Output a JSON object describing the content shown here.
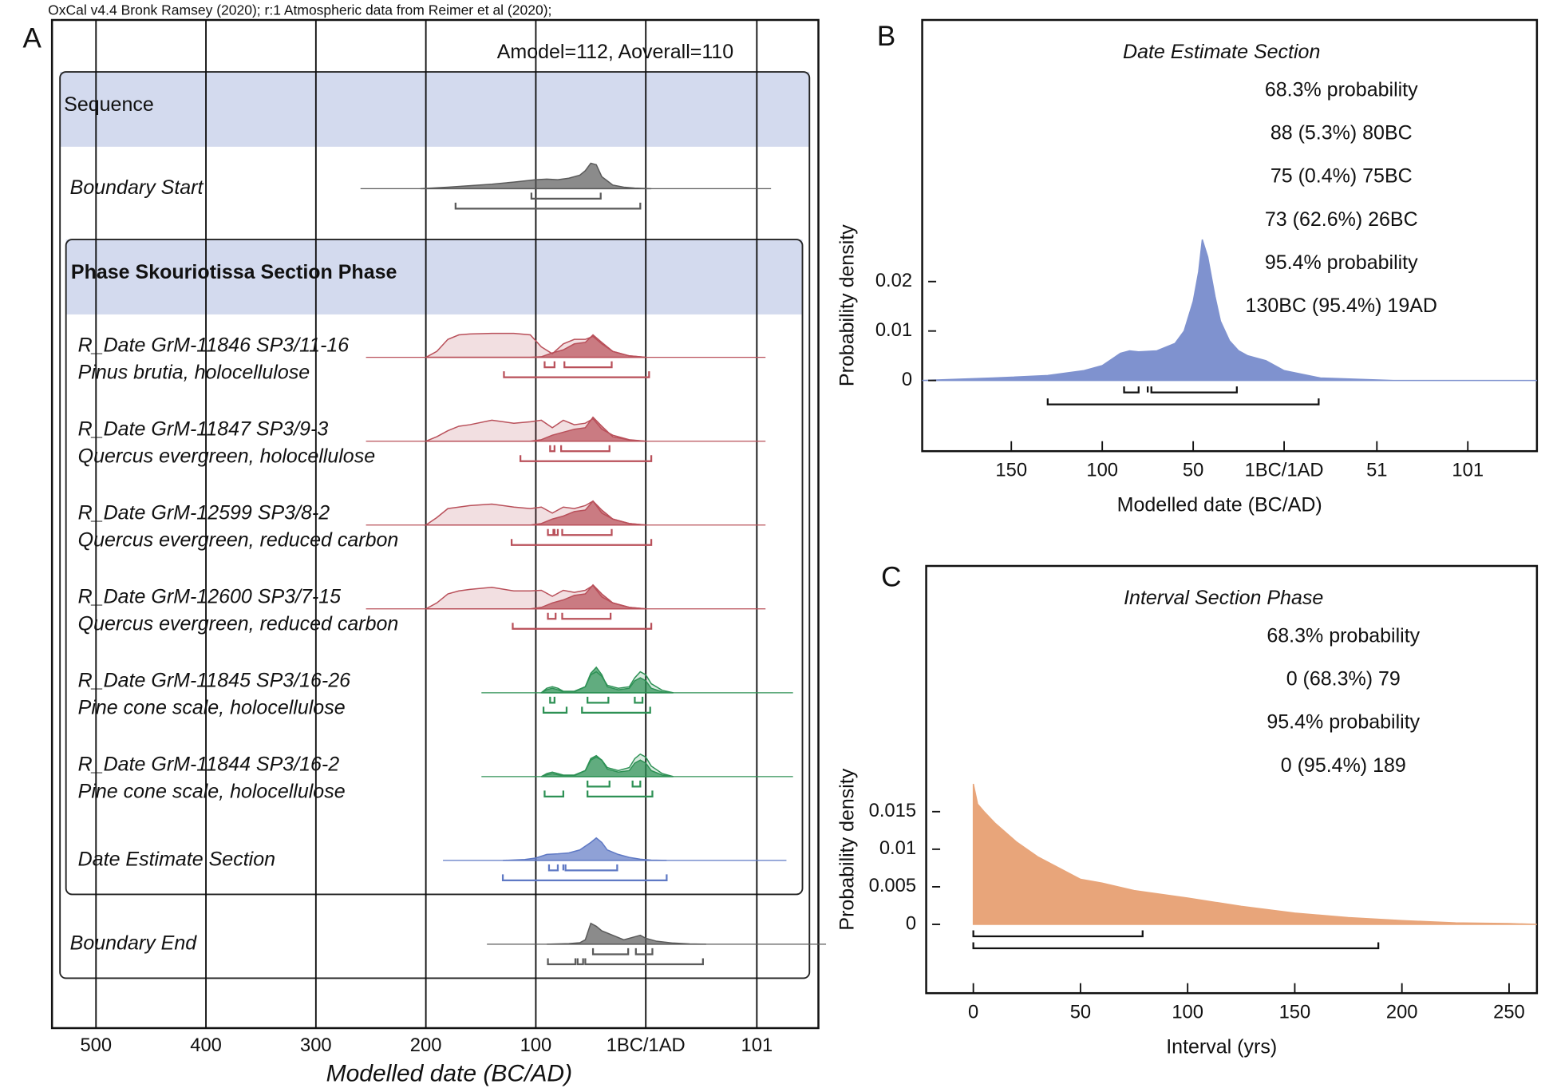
{
  "chart_data": [
    {
      "type": "multiplot",
      "header": "OxCal v4.4 Bronk Ramsey (2020); r:1 Atmospheric data from Reimer et al (2020);",
      "panel_label": "A",
      "annotation": "Amodel=112, Aoverall=110",
      "xlabel": "Modelled date (BC/AD)",
      "xlim": [
        -540,
        157
      ],
      "xticks": [
        {
          "value": -500,
          "label": "500"
        },
        {
          "value": -400,
          "label": "400"
        },
        {
          "value": -300,
          "label": "300"
        },
        {
          "value": -200,
          "label": "200"
        },
        {
          "value": -100,
          "label": "100"
        },
        {
          "value": 0,
          "label": "1BC/1AD"
        },
        101
      ],
      "grid": true,
      "sections": [
        {
          "label": "Sequence"
        },
        {
          "label": "Phase Skouriotissa Section Phase"
        }
      ],
      "rows": [
        {
          "name": "Boundary Start",
          "color": "#5a5a5a",
          "x": [
            -205,
            -180,
            -160,
            -140,
            -120,
            -100,
            -90,
            -80,
            -70,
            -60,
            -55,
            -50,
            -45,
            -40,
            -30,
            -20,
            -10,
            5
          ],
          "posterior": [
            0,
            0.05,
            0.1,
            0.15,
            0.22,
            0.3,
            0.32,
            0.3,
            0.35,
            0.45,
            0.6,
            0.85,
            0.8,
            0.4,
            0.12,
            0.05,
            0.02,
            0
          ],
          "ranges_68": [
            [
              -104,
              -41
            ]
          ],
          "ranges_95": [
            [
              -173,
              -5
            ]
          ]
        },
        {
          "name": "R_Date GrM-11846 SP3/11-16",
          "subtitle": "Pinus brutia, holocellulose",
          "color": "#b9505a",
          "x": [
            -200,
            -190,
            -180,
            -170,
            -160,
            -140,
            -120,
            -105,
            -95,
            -85,
            -75,
            -65,
            -55,
            -48,
            -40,
            -30,
            -15,
            0
          ],
          "likelihood": [
            0,
            0.2,
            0.6,
            0.75,
            0.78,
            0.8,
            0.8,
            0.75,
            0.35,
            0.12,
            0.45,
            0.6,
            0.6,
            0.7,
            0.45,
            0.2,
            0.05,
            0
          ],
          "posterior": [
            0,
            0,
            0,
            0,
            0,
            0,
            0,
            0,
            0.02,
            0.15,
            0.25,
            0.45,
            0.5,
            0.75,
            0.5,
            0.2,
            0.05,
            0
          ],
          "ranges_68": [
            [
              -92,
              -83
            ],
            [
              -74,
              -31
            ]
          ],
          "ranges_95": [
            [
              -129,
              3
            ]
          ]
        },
        {
          "name": "R_Date GrM-11847 SP3/9-3",
          "subtitle": "Quercus evergreen, holocellulose",
          "color": "#b9505a",
          "x": [
            -200,
            -190,
            -180,
            -170,
            -160,
            -140,
            -120,
            -105,
            -95,
            -85,
            -75,
            -65,
            -55,
            -48,
            -40,
            -30,
            -15,
            0
          ],
          "likelihood": [
            0,
            0.15,
            0.35,
            0.5,
            0.55,
            0.7,
            0.6,
            0.65,
            0.7,
            0.45,
            0.7,
            0.55,
            0.6,
            0.75,
            0.4,
            0.2,
            0.05,
            0
          ],
          "posterior": [
            0,
            0,
            0,
            0,
            0,
            0,
            0,
            0,
            0.05,
            0.2,
            0.3,
            0.4,
            0.45,
            0.8,
            0.5,
            0.15,
            0.04,
            0
          ],
          "ranges_68": [
            [
              -87,
              -83
            ],
            [
              -77,
              -33
            ]
          ],
          "ranges_95": [
            [
              -114,
              5
            ]
          ]
        },
        {
          "name": "R_Date GrM-12599 SP3/8-2",
          "subtitle": "Quercus evergreen, reduced carbon",
          "color": "#b9505a",
          "x": [
            -200,
            -190,
            -180,
            -170,
            -160,
            -140,
            -120,
            -105,
            -95,
            -85,
            -75,
            -65,
            -55,
            -48,
            -40,
            -30,
            -15,
            0
          ],
          "likelihood": [
            0,
            0.25,
            0.55,
            0.6,
            0.65,
            0.7,
            0.6,
            0.55,
            0.6,
            0.4,
            0.6,
            0.55,
            0.65,
            0.8,
            0.4,
            0.2,
            0.05,
            0
          ],
          "posterior": [
            0,
            0,
            0,
            0,
            0,
            0,
            0,
            0,
            0.05,
            0.2,
            0.3,
            0.45,
            0.5,
            0.8,
            0.5,
            0.2,
            0.05,
            0
          ],
          "ranges_68": [
            [
              -89,
              -84
            ],
            [
              -83,
              -80
            ],
            [
              -76,
              -31
            ]
          ],
          "ranges_95": [
            [
              -122,
              5
            ]
          ]
        },
        {
          "name": "R_Date GrM-12600 SP3/7-15",
          "subtitle": "Quercus evergreen, reduced carbon",
          "color": "#b9505a",
          "x": [
            -200,
            -190,
            -180,
            -170,
            -160,
            -140,
            -120,
            -105,
            -95,
            -85,
            -75,
            -65,
            -55,
            -48,
            -40,
            -30,
            -15,
            0
          ],
          "likelihood": [
            0,
            0.2,
            0.5,
            0.6,
            0.65,
            0.72,
            0.6,
            0.6,
            0.62,
            0.42,
            0.62,
            0.55,
            0.62,
            0.78,
            0.4,
            0.2,
            0.05,
            0
          ],
          "posterior": [
            0,
            0,
            0,
            0,
            0,
            0,
            0,
            0,
            0.05,
            0.2,
            0.3,
            0.45,
            0.5,
            0.8,
            0.5,
            0.2,
            0.05,
            0
          ],
          "ranges_68": [
            [
              -89,
              -82
            ],
            [
              -76,
              -32
            ]
          ],
          "ranges_95": [
            [
              -121,
              5
            ]
          ]
        },
        {
          "name": "R_Date GrM-11845 SP3/16-26",
          "subtitle": "Pine cone scale, holocellulose",
          "color": "#2e9155",
          "x": [
            -95,
            -90,
            -85,
            -80,
            -75,
            -65,
            -55,
            -50,
            -45,
            -40,
            -35,
            -25,
            -15,
            -10,
            -5,
            0,
            5,
            15,
            25
          ],
          "likelihood": [
            0,
            0.15,
            0.2,
            0.15,
            0.05,
            0.05,
            0.2,
            0.6,
            0.7,
            0.55,
            0.25,
            0.15,
            0.2,
            0.5,
            0.7,
            0.6,
            0.3,
            0.08,
            0
          ],
          "posterior": [
            0,
            0.1,
            0.15,
            0.1,
            0.03,
            0.03,
            0.2,
            0.65,
            0.85,
            0.6,
            0.2,
            0.1,
            0.15,
            0.4,
            0.5,
            0.4,
            0.15,
            0.03,
            0
          ],
          "ranges_68": [
            [
              -87,
              -83
            ],
            [
              -53,
              -34
            ],
            [
              -10,
              -3
            ]
          ],
          "ranges_95": [
            [
              -93,
              -72
            ],
            [
              -58,
              4
            ]
          ]
        },
        {
          "name": "R_Date GrM-11844 SP3/16-2",
          "subtitle": "Pine cone scale, holocellulose",
          "color": "#2e9155",
          "x": [
            -95,
            -90,
            -85,
            -80,
            -75,
            -65,
            -55,
            -50,
            -45,
            -40,
            -35,
            -25,
            -15,
            -10,
            -5,
            0,
            5,
            15,
            25
          ],
          "likelihood": [
            0,
            0.1,
            0.15,
            0.1,
            0.05,
            0.05,
            0.2,
            0.55,
            0.65,
            0.55,
            0.3,
            0.2,
            0.3,
            0.6,
            0.75,
            0.65,
            0.35,
            0.1,
            0
          ],
          "posterior": [
            0,
            0.06,
            0.1,
            0.06,
            0.03,
            0.03,
            0.2,
            0.6,
            0.7,
            0.55,
            0.25,
            0.15,
            0.2,
            0.45,
            0.55,
            0.45,
            0.2,
            0.05,
            0
          ],
          "ranges_68": [
            [
              -53,
              -33
            ],
            [
              -12,
              -5
            ]
          ],
          "ranges_95": [
            [
              -92,
              -75
            ],
            [
              -53,
              6
            ]
          ]
        },
        {
          "name": "Date Estimate Section",
          "color": "#5f79c4",
          "x": [
            -130,
            -110,
            -100,
            -90,
            -80,
            -70,
            -60,
            -50,
            -45,
            -40,
            -35,
            -25,
            -15,
            -5,
            5,
            19
          ],
          "posterior": [
            0,
            0.03,
            0.08,
            0.2,
            0.22,
            0.25,
            0.35,
            0.6,
            0.75,
            0.6,
            0.35,
            0.2,
            0.1,
            0.04,
            0.01,
            0
          ],
          "ranges_68": [
            [
              -88,
              -80
            ],
            [
              -75,
              -75
            ],
            [
              -73,
              -26
            ]
          ],
          "ranges_95": [
            [
              -130,
              19
            ]
          ]
        },
        {
          "name": "Boundary End",
          "color": "#5a5a5a",
          "x": [
            -90,
            -70,
            -60,
            -55,
            -50,
            -45,
            -40,
            -30,
            -20,
            -10,
            -5,
            0,
            10,
            25,
            40,
            55
          ],
          "posterior": [
            0,
            0.02,
            0.05,
            0.15,
            0.7,
            0.6,
            0.45,
            0.3,
            0.15,
            0.25,
            0.3,
            0.2,
            0.1,
            0.04,
            0.01,
            0
          ],
          "ranges_68": [
            [
              -48,
              -16
            ],
            [
              -9,
              6
            ]
          ],
          "ranges_95": [
            [
              -89,
              -64
            ],
            [
              -62,
              -57
            ],
            [
              -55,
              52
            ]
          ]
        }
      ]
    },
    {
      "type": "area",
      "panel_label": "B",
      "title": "Date Estimate Section",
      "annotations": [
        "68.3% probability",
        "88 (5.3%) 80BC",
        "75 (0.4%) 75BC",
        "73 (62.6%) 26BC",
        "95.4% probability",
        "130BC (95.4%) 19AD"
      ],
      "xlabel": "Modelled date (BC/AD)",
      "ylabel": "Probability density",
      "color": "#7f92cf",
      "xlim": [
        -199,
        139
      ],
      "ylim": [
        -0.0143,
        0.0729
      ],
      "xticks": [
        {
          "value": -150,
          "label": "150"
        },
        {
          "value": -100,
          "label": "100"
        },
        {
          "value": -50,
          "label": "50"
        },
        {
          "value": 0,
          "label": "1BC/1AD"
        },
        51,
        101
      ],
      "yticks": [
        0,
        0.01,
        0.02
      ],
      "x": [
        -199,
        -160,
        -130,
        -110,
        -100,
        -90,
        -85,
        -80,
        -70,
        -60,
        -55,
        -50,
        -47,
        -45,
        -42,
        -38,
        -35,
        -30,
        -25,
        -20,
        -15,
        -10,
        0,
        20,
        60,
        139
      ],
      "values": [
        0,
        0.0005,
        0.001,
        0.002,
        0.003,
        0.0055,
        0.006,
        0.0058,
        0.006,
        0.0075,
        0.01,
        0.016,
        0.022,
        0.0285,
        0.025,
        0.017,
        0.012,
        0.008,
        0.006,
        0.005,
        0.0045,
        0.004,
        0.002,
        0.0005,
        0,
        0
      ],
      "ranges_68": [
        [
          -88,
          -80
        ],
        [
          -75,
          -75
        ],
        [
          -73,
          -26
        ]
      ],
      "ranges_95": [
        [
          -130,
          19
        ]
      ]
    },
    {
      "type": "area",
      "panel_label": "C",
      "title": "Interval Section Phase",
      "annotations": [
        "68.3% probability",
        "0 (68.3%) 79",
        "95.4% probability",
        "0 (95.4%) 189"
      ],
      "xlabel": "Interval (yrs)",
      "ylabel": "Probability density",
      "color": "#e8a57a",
      "xlim": [
        -22,
        263
      ],
      "ylim": [
        -0.00916,
        0.0477
      ],
      "xticks": [
        0,
        50,
        100,
        150,
        200,
        250
      ],
      "yticks": [
        0,
        0.005,
        0.01,
        0.015
      ],
      "x": [
        0,
        2,
        5,
        10,
        20,
        30,
        40,
        50,
        60,
        75,
        100,
        125,
        150,
        175,
        200,
        225,
        250,
        263
      ],
      "values": [
        0.0187,
        0.016,
        0.015,
        0.0135,
        0.011,
        0.009,
        0.0075,
        0.006,
        0.0055,
        0.0045,
        0.0035,
        0.0024,
        0.0015,
        0.0009,
        0.0005,
        0.0002,
        0.0001,
        0
      ],
      "ranges_68": [
        [
          0,
          79
        ]
      ],
      "ranges_95": [
        [
          0,
          189
        ]
      ]
    }
  ]
}
